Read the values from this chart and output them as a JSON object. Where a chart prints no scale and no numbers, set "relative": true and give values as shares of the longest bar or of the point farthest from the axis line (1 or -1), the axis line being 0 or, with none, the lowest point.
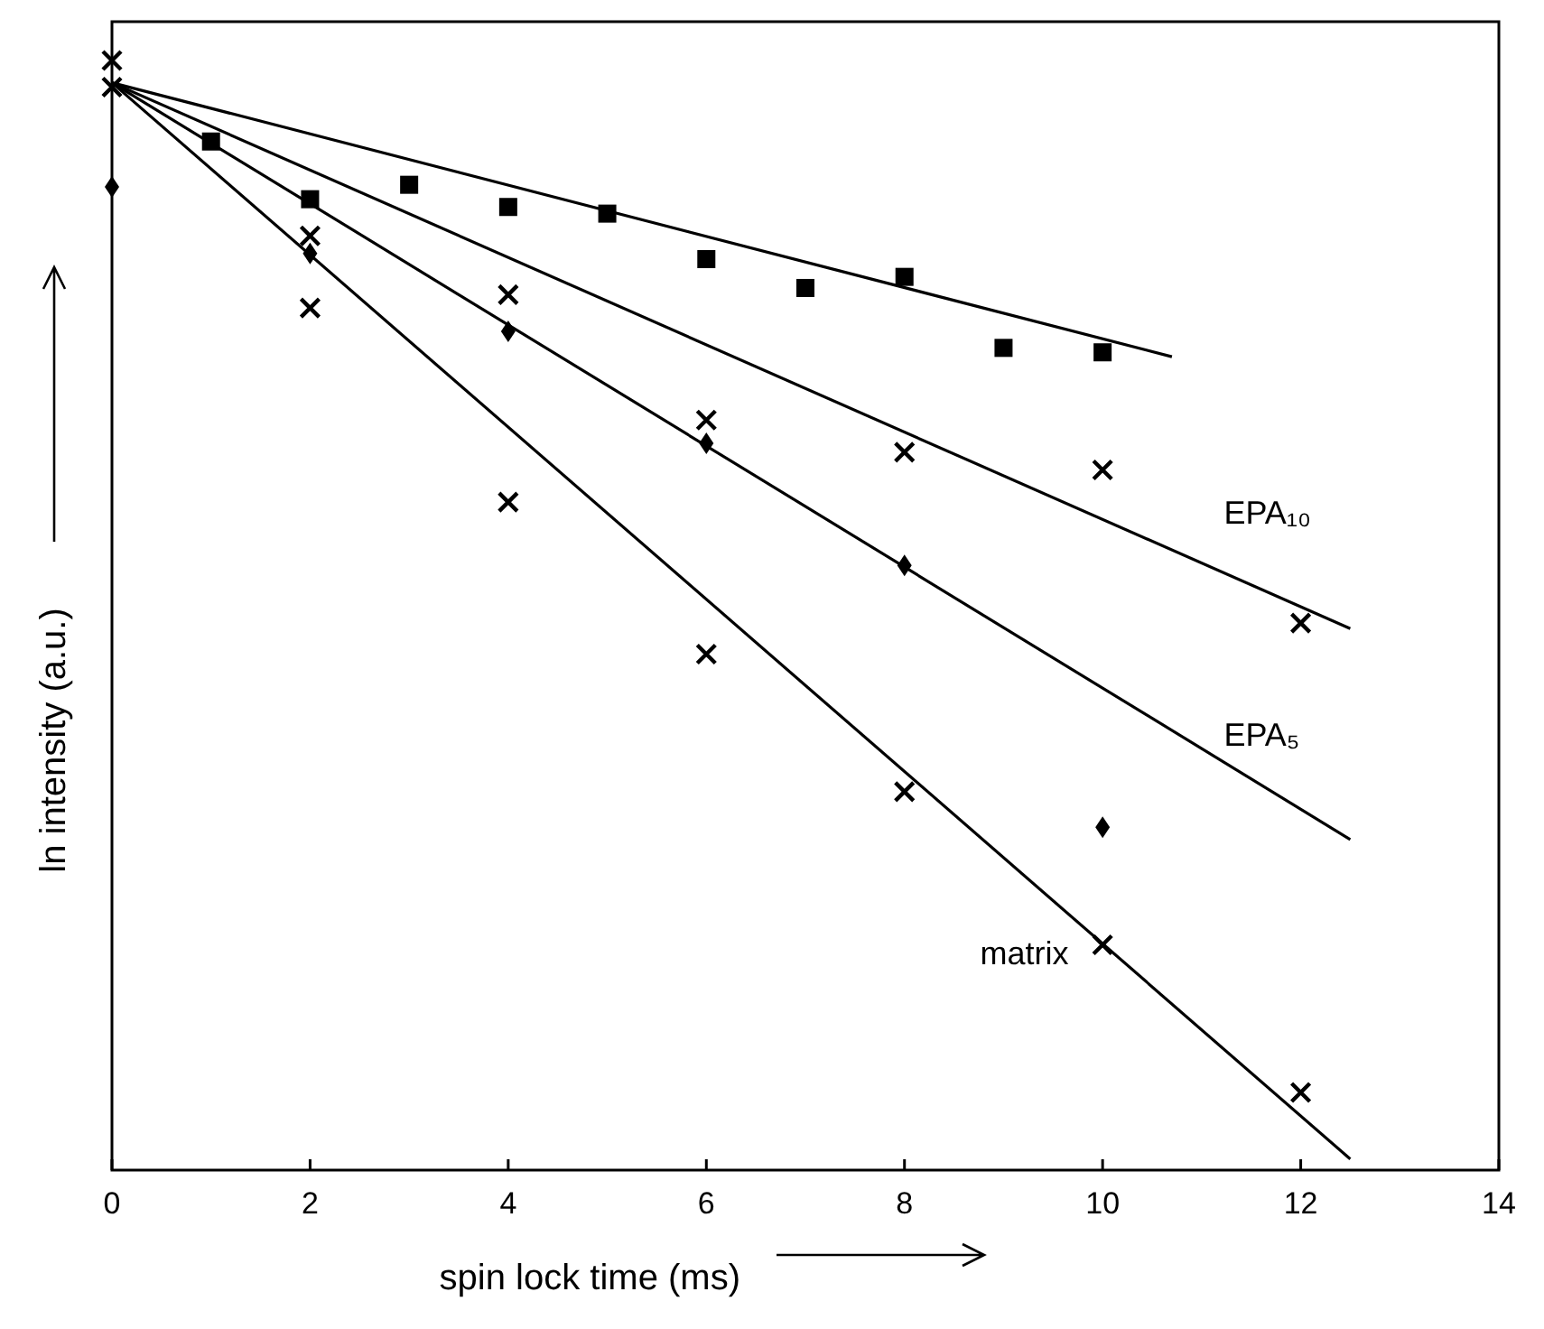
{
  "chart_data": {
    "type": "scatter",
    "relative": true,
    "xlabel": "spin lock time  (ms)",
    "ylabel": "ln intensity (a.u.)",
    "xlim": [
      0,
      14
    ],
    "xticks": [
      0,
      2,
      4,
      6,
      8,
      10,
      12,
      14
    ],
    "tick_labels": "x",
    "grid": false,
    "legend": false,
    "series": [
      {
        "type": "scatter",
        "marker": "square",
        "color": "#000000",
        "x": [
          1,
          2,
          3,
          4,
          5,
          6,
          7,
          8,
          9,
          10
        ],
        "values": [
          0.927,
          0.875,
          0.888,
          0.868,
          0.862,
          0.821,
          0.795,
          0.805,
          0.741,
          0.737
        ]
      },
      {
        "type": "scatter",
        "marker": "cross",
        "color": "#000000",
        "x": [
          0,
          2,
          4,
          6,
          8,
          10,
          12
        ],
        "values": [
          0.976,
          0.842,
          0.789,
          0.676,
          0.647,
          0.631,
          0.493
        ]
      },
      {
        "type": "scatter",
        "marker": "diamond",
        "color": "#000000",
        "x": [
          0,
          2,
          4,
          6,
          8,
          10
        ],
        "values": [
          0.886,
          0.826,
          0.756,
          0.655,
          0.545,
          0.309
        ]
      },
      {
        "type": "scatter",
        "marker": "cross",
        "color": "#000000",
        "x": [
          0,
          2,
          4,
          6,
          8,
          10,
          12
        ],
        "values": [
          1,
          0.777,
          0.602,
          0.465,
          0.341,
          0.203,
          0.07
        ]
      },
      {
        "type": "line",
        "marker": "none",
        "line_style": "solid",
        "color": "#000000",
        "x": [
          0,
          10.7
        ],
        "values": [
          0.98,
          0.733
        ]
      },
      {
        "type": "line",
        "marker": "none",
        "line_style": "solid",
        "name": "EPA₁₀",
        "color": "#000000",
        "x": [
          0,
          12.5
        ],
        "values": [
          0.98,
          0.488
        ]
      },
      {
        "type": "line",
        "marker": "none",
        "line_style": "solid",
        "name": "EPA₅",
        "color": "#000000",
        "x": [
          0,
          12.5
        ],
        "values": [
          0.98,
          0.298
        ]
      },
      {
        "type": "line",
        "marker": "none",
        "line_style": "solid",
        "name": "matrix",
        "color": "#000000",
        "x": [
          0,
          12.5
        ],
        "values": [
          0.98,
          0.01
        ]
      }
    ]
  }
}
